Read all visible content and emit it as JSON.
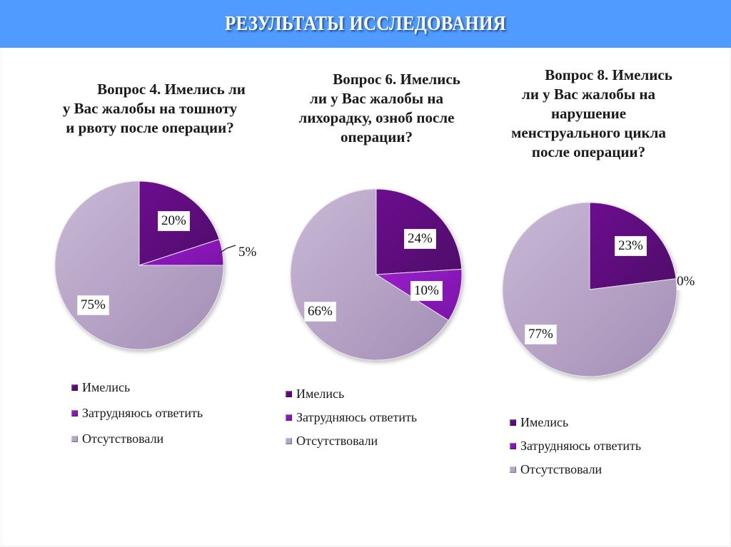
{
  "header": {
    "title": "РЕЗУЛЬТАТЫ ИССЛЕДОВАНИЯ"
  },
  "colors": {
    "header_bg": "#4f9bff",
    "had": "#5e0a7a",
    "hard_to_answer": "#8a16b8",
    "absent": "#b7a3c6"
  },
  "legend": [
    {
      "label": "Имелись",
      "color": "#5e0a7a"
    },
    {
      "label": "Затрудняюсь ответить",
      "color": "#8a16b8"
    },
    {
      "label": "Отсутствовали",
      "color": "#b7a3c6"
    }
  ],
  "charts": [
    {
      "question_lines": [
        "Вопрос 4. Имелись ли",
        "у Вас жалобы на тошноту",
        "и рвоту после операции?"
      ],
      "labels": [
        "20%",
        "5%",
        "75%"
      ]
    },
    {
      "question_lines": [
        "Вопрос 6. Имелись",
        "ли у Вас жалобы на",
        "лихорадку, озноб после",
        "операции?"
      ],
      "labels": [
        "24%",
        "10%",
        "66%"
      ]
    },
    {
      "question_lines": [
        "Вопрос 8. Имелись",
        "ли у Вас жалобы на",
        "нарушение",
        "менструального цикла",
        "после операции?"
      ],
      "labels": [
        "23%",
        "0%",
        "77%"
      ]
    }
  ],
  "chart_data": [
    {
      "type": "pie",
      "title": "Вопрос 4. Имелись ли у Вас жалобы на тошноту и рвоту после операции?",
      "categories": [
        "Имелись",
        "Затрудняюсь ответить",
        "Отсутствовали"
      ],
      "values": [
        20,
        5,
        75
      ],
      "unit": "%",
      "legend_position": "bottom"
    },
    {
      "type": "pie",
      "title": "Вопрос 6. Имелись ли у Вас жалобы на лихорадку, озноб после операции?",
      "categories": [
        "Имелись",
        "Затрудняюсь ответить",
        "Отсутствовали"
      ],
      "values": [
        24,
        10,
        66
      ],
      "unit": "%",
      "legend_position": "bottom"
    },
    {
      "type": "pie",
      "title": "Вопрос 8. Имелись ли у Вас жалобы на нарушение менструального цикла после операции?",
      "categories": [
        "Имелись",
        "Затрудняюсь ответить",
        "Отсутствовали"
      ],
      "values": [
        23,
        0,
        77
      ],
      "unit": "%",
      "legend_position": "bottom"
    }
  ]
}
